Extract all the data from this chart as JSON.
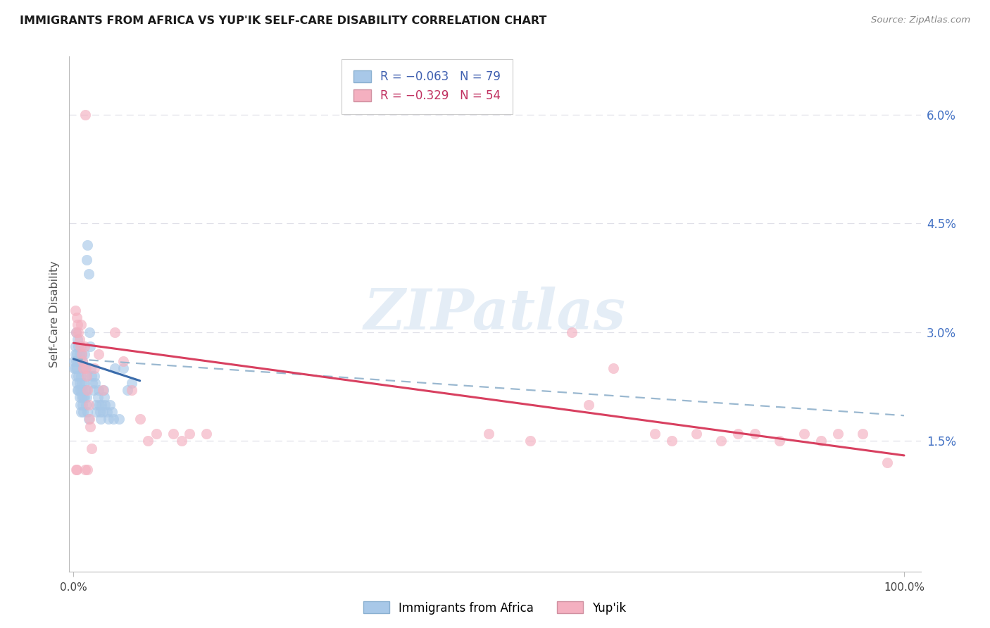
{
  "title": "IMMIGRANTS FROM AFRICA VS YUP'IK SELF-CARE DISABILITY CORRELATION CHART",
  "source": "Source: ZipAtlas.com",
  "ylabel": "Self-Care Disability",
  "ytick_vals": [
    0.0,
    0.015,
    0.03,
    0.045,
    0.06
  ],
  "ytick_labels": [
    "",
    "1.5%",
    "3.0%",
    "4.5%",
    "6.0%"
  ],
  "xlim": [
    -0.005,
    1.02
  ],
  "ylim": [
    -0.003,
    0.068
  ],
  "watermark_text": "ZIPatlas",
  "legend_line1": "R = −0.063   N = 79",
  "legend_line2": "R = −0.329   N = 54",
  "legend_labels": [
    "Immigrants from Africa",
    "Yup'ik"
  ],
  "blue_scatter_color": "#a8c8e8",
  "pink_scatter_color": "#f4b0c0",
  "blue_line_color": "#3a6baa",
  "pink_line_color": "#d84060",
  "dashed_line_color": "#9ab8d0",
  "grid_color": "#e0e0e8",
  "africa_x": [
    0.001,
    0.002,
    0.002,
    0.003,
    0.003,
    0.004,
    0.004,
    0.005,
    0.005,
    0.006,
    0.006,
    0.007,
    0.007,
    0.008,
    0.008,
    0.009,
    0.009,
    0.01,
    0.01,
    0.011,
    0.011,
    0.012,
    0.012,
    0.013,
    0.013,
    0.014,
    0.015,
    0.016,
    0.016,
    0.017,
    0.018,
    0.019,
    0.02,
    0.021,
    0.022,
    0.023,
    0.024,
    0.025,
    0.026,
    0.027,
    0.028,
    0.029,
    0.03,
    0.031,
    0.032,
    0.033,
    0.034,
    0.035,
    0.036,
    0.037,
    0.038,
    0.04,
    0.042,
    0.044,
    0.046,
    0.048,
    0.05,
    0.055,
    0.06,
    0.001,
    0.002,
    0.003,
    0.004,
    0.005,
    0.006,
    0.007,
    0.008,
    0.009,
    0.01,
    0.011,
    0.012,
    0.013,
    0.014,
    0.015,
    0.016,
    0.017,
    0.018,
    0.065,
    0.07
  ],
  "africa_y": [
    0.026,
    0.028,
    0.025,
    0.03,
    0.024,
    0.027,
    0.023,
    0.029,
    0.022,
    0.028,
    0.024,
    0.027,
    0.023,
    0.026,
    0.022,
    0.028,
    0.024,
    0.027,
    0.023,
    0.026,
    0.022,
    0.025,
    0.021,
    0.027,
    0.023,
    0.025,
    0.022,
    0.04,
    0.024,
    0.042,
    0.038,
    0.03,
    0.028,
    0.025,
    0.024,
    0.023,
    0.022,
    0.024,
    0.023,
    0.02,
    0.019,
    0.021,
    0.022,
    0.02,
    0.019,
    0.018,
    0.02,
    0.019,
    0.022,
    0.021,
    0.02,
    0.019,
    0.018,
    0.02,
    0.019,
    0.018,
    0.025,
    0.018,
    0.025,
    0.025,
    0.027,
    0.026,
    0.025,
    0.026,
    0.022,
    0.021,
    0.02,
    0.019,
    0.021,
    0.02,
    0.019,
    0.021,
    0.022,
    0.02,
    0.021,
    0.019,
    0.018,
    0.022,
    0.023
  ],
  "yupik_x": [
    0.002,
    0.003,
    0.004,
    0.005,
    0.006,
    0.007,
    0.008,
    0.009,
    0.01,
    0.011,
    0.012,
    0.013,
    0.014,
    0.015,
    0.016,
    0.017,
    0.018,
    0.019,
    0.02,
    0.022,
    0.003,
    0.004,
    0.014,
    0.017,
    0.025,
    0.03,
    0.035,
    0.05,
    0.06,
    0.07,
    0.08,
    0.09,
    0.1,
    0.12,
    0.13,
    0.14,
    0.16,
    0.5,
    0.55,
    0.6,
    0.62,
    0.65,
    0.7,
    0.72,
    0.75,
    0.78,
    0.8,
    0.82,
    0.85,
    0.88,
    0.9,
    0.92,
    0.95,
    0.98
  ],
  "yupik_y": [
    0.033,
    0.03,
    0.032,
    0.031,
    0.03,
    0.029,
    0.028,
    0.031,
    0.027,
    0.026,
    0.025,
    0.028,
    0.06,
    0.025,
    0.024,
    0.022,
    0.02,
    0.018,
    0.017,
    0.014,
    0.011,
    0.011,
    0.011,
    0.011,
    0.025,
    0.027,
    0.022,
    0.03,
    0.026,
    0.022,
    0.018,
    0.015,
    0.016,
    0.016,
    0.015,
    0.016,
    0.016,
    0.016,
    0.015,
    0.03,
    0.02,
    0.025,
    0.016,
    0.015,
    0.016,
    0.015,
    0.016,
    0.016,
    0.015,
    0.016,
    0.015,
    0.016,
    0.016,
    0.012
  ],
  "blue_line_x": [
    0.0,
    0.08
  ],
  "blue_line_y": [
    0.0263,
    0.0233
  ],
  "dashed_line_x": [
    0.0,
    1.0
  ],
  "dashed_line_y": [
    0.0263,
    0.0185
  ],
  "pink_line_x": [
    0.0,
    1.0
  ],
  "pink_line_y": [
    0.0285,
    0.013
  ]
}
